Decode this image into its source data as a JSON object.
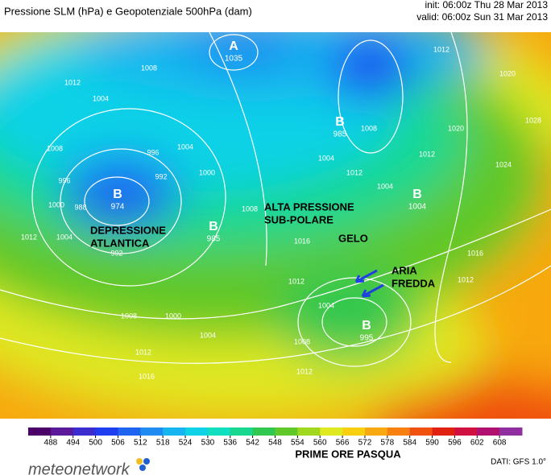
{
  "header": {
    "title": "Pressione SLM (hPa) e Geopotenziale 500hPa (dam)",
    "init": "init: 06:00z Thu 28 Mar 2013",
    "valid": "valid: 06:00z Sun 31 Mar 2013"
  },
  "centers": [
    {
      "letter": "A",
      "value": 1035
    },
    {
      "letter": "B",
      "value": 985
    },
    {
      "letter": "B",
      "value": 974
    },
    {
      "letter": "B",
      "value": 985
    },
    {
      "letter": "B",
      "value": 1004
    },
    {
      "letter": "B",
      "value": 995
    }
  ],
  "annotations": [
    [
      "DEPRESSIONE",
      "ATLANTICA"
    ],
    [
      "ALTA PRESSIONE",
      "SUB-POLARE"
    ],
    [
      "GELO"
    ],
    [
      "ARIA",
      "FREDDA"
    ]
  ],
  "isobar_labels": [
    1012,
    1008,
    1004,
    1012,
    1020,
    1028,
    1020,
    1024,
    1012,
    1008,
    1004,
    1012,
    1008,
    996,
    1000,
    988,
    1004,
    1012,
    996,
    992,
    1004,
    1000,
    1008,
    992,
    1016,
    1012,
    1016,
    1012,
    1000,
    1004,
    1008,
    1004,
    1008,
    1012,
    1016,
    1012,
    1004
  ],
  "colorbar": {
    "ticks": [
      488,
      494,
      500,
      506,
      512,
      518,
      524,
      530,
      536,
      542,
      548,
      554,
      560,
      566,
      572,
      578,
      584,
      590,
      596,
      602,
      608
    ],
    "colors": [
      "#4b0068",
      "#5a1a9a",
      "#3a2ccf",
      "#1e3cf0",
      "#1e64f0",
      "#1e8cf0",
      "#16b4f0",
      "#10d2e6",
      "#10e0c0",
      "#18d890",
      "#30c850",
      "#60c828",
      "#a0d820",
      "#e0e820",
      "#f8d010",
      "#f8a810",
      "#f88010",
      "#f05010",
      "#e02010",
      "#d01040",
      "#b01070",
      "#9030a0"
    ]
  },
  "caption": "PRIME ORE PASQUA",
  "logo": "meteonetwork",
  "source": "DATI: GFS 1.0°"
}
